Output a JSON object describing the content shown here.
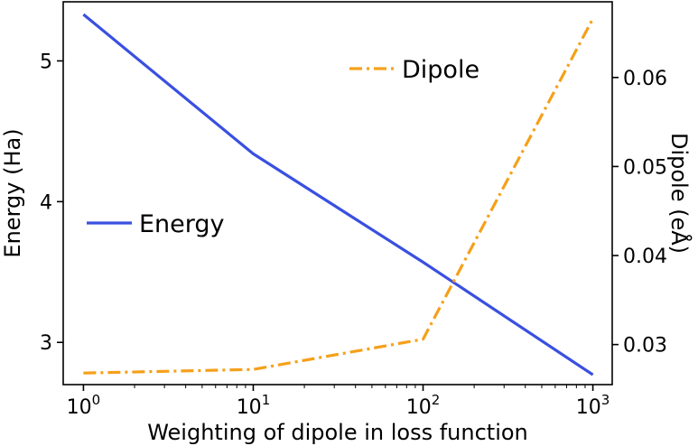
{
  "chart_data": {
    "type": "line",
    "xlabel": "Weighting of dipole in loss function",
    "ylabel_left": "Energy (Ha)",
    "ylabel_right": "Dipole (eÅ)",
    "x_scale": "log",
    "x": [
      1,
      10,
      100,
      1000
    ],
    "x_ticks": [
      {
        "base": "10",
        "exp": "0",
        "value": 1
      },
      {
        "base": "10",
        "exp": "1",
        "value": 10
      },
      {
        "base": "10",
        "exp": "2",
        "value": 100
      },
      {
        "base": "10",
        "exp": "3",
        "value": 1000
      }
    ],
    "xlim": [
      0.76,
      1300
    ],
    "ylim_left": [
      2.7,
      5.42
    ],
    "ylim_right": [
      0.0255,
      0.0685
    ],
    "y_ticks_left": [
      "3",
      "4",
      "5"
    ],
    "y_ticks_right": [
      "0.03",
      "0.04",
      "0.05",
      "0.06"
    ],
    "grid": false,
    "series": [
      {
        "name": "Energy",
        "axis": "left",
        "color": "#3a50e0",
        "dash": "solid",
        "values": [
          5.33,
          4.34,
          3.57,
          2.77
        ],
        "legend_position": "center-left"
      },
      {
        "name": "Dipole",
        "axis": "right",
        "color": "#f5a01a",
        "dash": "dashdot",
        "values": [
          0.0268,
          0.0272,
          0.0306,
          0.0666
        ],
        "legend_position": "top-center"
      }
    ]
  }
}
